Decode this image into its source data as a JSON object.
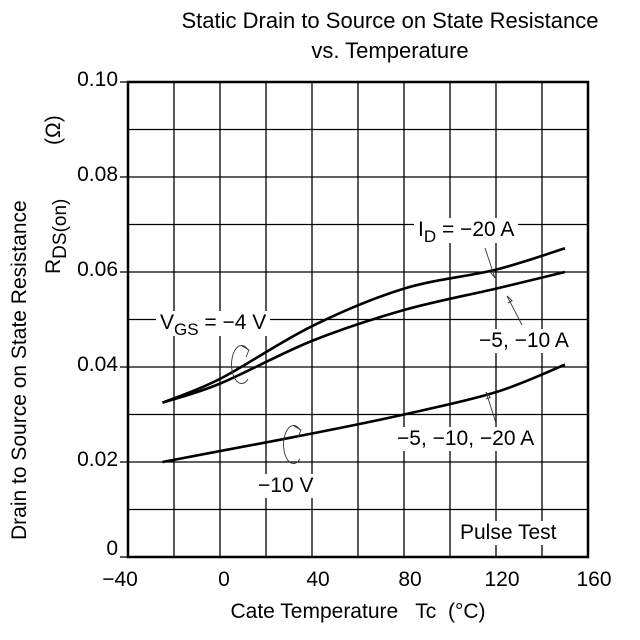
{
  "chart_data": {
    "type": "line",
    "title": "Static Drain to Source on State Resistance",
    "subtitle": "vs. Temperature",
    "xlabel": "Cate Temperature   Tc  (°C)",
    "ylabel_main": "Drain to Source on State Resistance",
    "ylabel_symbol": "R",
    "ylabel_subscript": "DS(on)",
    "ylabel_unit": "(Ω)",
    "xlim": [
      -40,
      160
    ],
    "ylim": [
      0,
      0.1
    ],
    "x_ticks": [
      "−40",
      "0",
      "40",
      "80",
      "120",
      "160"
    ],
    "x_tick_values": [
      -40,
      0,
      40,
      80,
      120,
      160
    ],
    "y_ticks": [
      "0",
      "0.02",
      "0.04",
      "0.06",
      "0.08",
      "0.10"
    ],
    "y_tick_values": [
      0,
      0.02,
      0.04,
      0.06,
      0.08,
      0.1
    ],
    "x_grid_step": 20,
    "y_grid_step": 0.01,
    "grid": true,
    "series": [
      {
        "name": "VGS = −4 V, ID = −20 A",
        "x": [
          -25,
          0,
          40,
          80,
          120,
          150
        ],
        "y": [
          0.0325,
          0.0375,
          0.0486,
          0.0565,
          0.0605,
          0.065
        ]
      },
      {
        "name": "VGS = −4 V, ID = −5, −10 A",
        "x": [
          -25,
          0,
          40,
          80,
          120,
          150
        ],
        "y": [
          0.0325,
          0.0365,
          0.0455,
          0.052,
          0.0565,
          0.06
        ]
      },
      {
        "name": "VGS = −10 V, ID = −5, −10, −20 A",
        "x": [
          -25,
          0,
          40,
          80,
          120,
          150
        ],
        "y": [
          0.02,
          0.0223,
          0.026,
          0.03,
          0.0347,
          0.0405
        ]
      }
    ],
    "annotations": {
      "id_20": {
        "prefix": "I",
        "sub": "D",
        "text": " = −20 A"
      },
      "id_5_10": "−5, −10 A",
      "id_all": "−5, −10, −20 A",
      "vgs_4": {
        "prefix": "V",
        "sub": "GS",
        "text": " = −4 V"
      },
      "vgs_10": "−10 V",
      "pulse": "Pulse Test"
    }
  }
}
